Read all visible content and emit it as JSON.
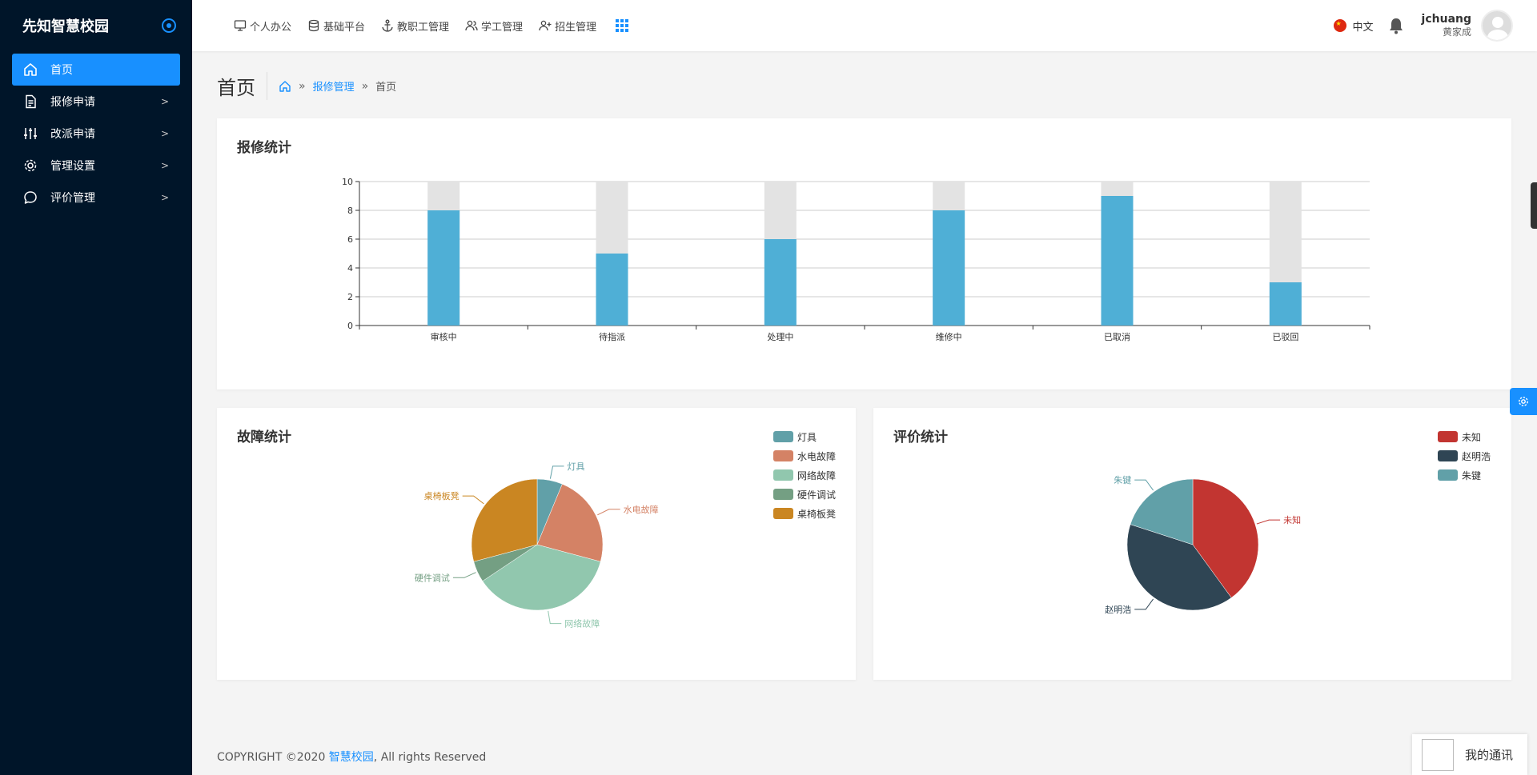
{
  "sidebar": {
    "brand": "先知智慧校园",
    "items": [
      {
        "label": "首页",
        "icon": "home-icon",
        "active": true
      },
      {
        "label": "报修申请",
        "icon": "document-icon"
      },
      {
        "label": "改派申请",
        "icon": "sliders-icon"
      },
      {
        "label": "管理设置",
        "icon": "gear-icon"
      },
      {
        "label": "评价管理",
        "icon": "comment-icon"
      }
    ]
  },
  "topnav": {
    "items": [
      {
        "label": "个人办公",
        "icon": "monitor-icon"
      },
      {
        "label": "基础平台",
        "icon": "database-icon"
      },
      {
        "label": "教职工管理",
        "icon": "anchor-icon"
      },
      {
        "label": "学工管理",
        "icon": "users-icon"
      },
      {
        "label": "招生管理",
        "icon": "user-add-icon"
      }
    ],
    "lang": "中文",
    "user_name": "jchuang",
    "user_sub": "黄家成"
  },
  "page": {
    "title": "首页",
    "breadcrumb": [
      "报修管理",
      "首页"
    ]
  },
  "cards": {
    "repair_title": "报修统计",
    "fault_title": "故障统计",
    "rating_title": "评价统计"
  },
  "chart_data": [
    {
      "type": "bar",
      "title": "报修统计",
      "categories": [
        "审核中",
        "待指派",
        "处理中",
        "维修中",
        "已取消",
        "已驳回"
      ],
      "values": [
        8,
        5,
        6,
        8,
        9,
        3
      ],
      "background_max": 10,
      "ylim": [
        0,
        10
      ],
      "yticks": [
        0,
        2,
        4,
        6,
        8,
        10
      ],
      "grid": true,
      "color": "#4fafd6",
      "bg_color": "#e3e3e3"
    },
    {
      "type": "pie",
      "title": "故障统计",
      "legend": "top-right",
      "slices": [
        {
          "label": "灯具",
          "value": 6,
          "color": "#61a0a8"
        },
        {
          "label": "水电故障",
          "value": 22,
          "color": "#d48265"
        },
        {
          "label": "网络故障",
          "value": 35,
          "color": "#91c7ae"
        },
        {
          "label": "硬件调试",
          "value": 5,
          "color": "#749f83"
        },
        {
          "label": "桌椅板凳",
          "value": 28,
          "color": "#ca8622"
        }
      ]
    },
    {
      "type": "pie",
      "title": "评价统计",
      "legend": "top-right",
      "slices": [
        {
          "label": "未知",
          "value": 40,
          "color": "#c23531"
        },
        {
          "label": "赵明浩",
          "value": 40,
          "color": "#2f4554"
        },
        {
          "label": "朱键",
          "value": 20,
          "color": "#61a0a8"
        }
      ]
    }
  ],
  "footer": {
    "prefix": "COPYRIGHT ©2020 ",
    "link": "智慧校园",
    "suffix": ", All rights Reserved"
  },
  "chat": {
    "label": "我的通讯"
  }
}
